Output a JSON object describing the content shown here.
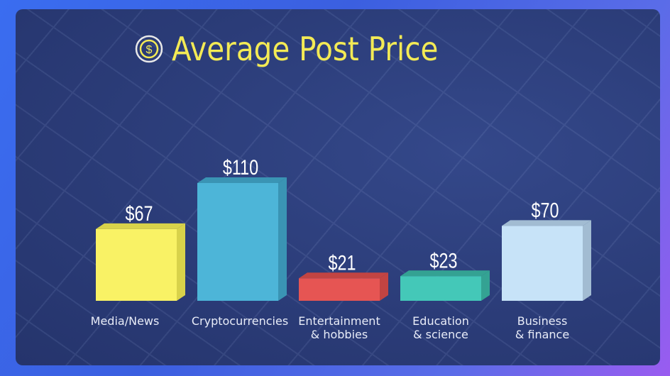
{
  "chart_data": {
    "type": "bar",
    "title": "Average Post Price",
    "title_icon": "dollar-coin-icon",
    "categories": [
      [
        "Media/News"
      ],
      [
        "Cryptocurrencies"
      ],
      [
        "Entertainment",
        "& hobbies"
      ],
      [
        "Education",
        "& science"
      ],
      [
        "Business",
        "& finance"
      ]
    ],
    "values": [
      67,
      110,
      21,
      23,
      70
    ],
    "value_labels": [
      "$67",
      "$110",
      "$21",
      "$23",
      "$70"
    ],
    "colors": [
      "#f9f265",
      "#4db5d8",
      "#e65553",
      "#44c8b8",
      "#c7e3f8"
    ],
    "side_colors": [
      "#d8d24a",
      "#3a94b4",
      "#c24442",
      "#34a293",
      "#a2bcd2"
    ],
    "xlabel": "",
    "ylabel": "",
    "ylim": [
      0,
      110
    ],
    "grid": false,
    "legend": "none",
    "style": "3d-bars"
  },
  "colors": {
    "title": "#f3ea55",
    "panel": "#2b3c78"
  }
}
